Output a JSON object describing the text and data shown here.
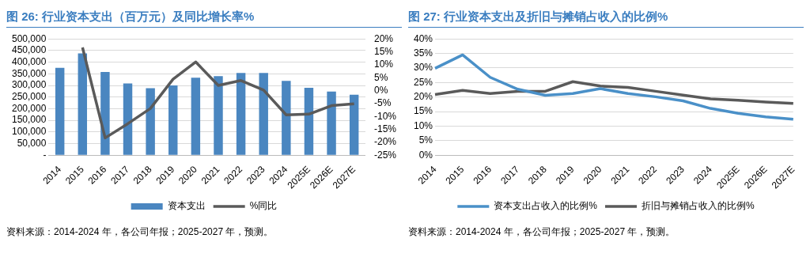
{
  "chart_data": [
    {
      "type": "bar",
      "title": "图 26: 行业资本支出（百万元）及同比增长率%",
      "categories": [
        "2014",
        "2015",
        "2016",
        "2017",
        "2018",
        "2019",
        "2020",
        "2021",
        "2022",
        "2023",
        "2024",
        "2025E",
        "2026E",
        "2027E"
      ],
      "series": [
        {
          "name": "资本支出",
          "type": "bar",
          "color": "#4a86c0",
          "values": [
            376000,
            438000,
            358000,
            309000,
            288000,
            300000,
            333000,
            340000,
            354000,
            354000,
            320000,
            290000,
            274000,
            260000
          ]
        },
        {
          "name": "%同比",
          "type": "line",
          "axis": "y2",
          "color": "#5a5a5a",
          "values": [
            null,
            16.7,
            -18.3,
            -12.8,
            -6.9,
            4.4,
            11.1,
            2.0,
            3.9,
            0.2,
            -9.4,
            -9.1,
            -5.8,
            -5.1
          ]
        }
      ],
      "ylim": [
        0,
        500000
      ],
      "yticks": [
        {
          "value": 0,
          "label": "-"
        },
        {
          "value": 50000,
          "label": "50,000"
        },
        {
          "value": 100000,
          "label": "100,000"
        },
        {
          "value": 150000,
          "label": "150,000"
        },
        {
          "value": 200000,
          "label": "200,000"
        },
        {
          "value": 250000,
          "label": "250,000"
        },
        {
          "value": 300000,
          "label": "300,000"
        },
        {
          "value": 350000,
          "label": "350,000"
        },
        {
          "value": 400000,
          "label": "400,000"
        },
        {
          "value": 450000,
          "label": "450,000"
        },
        {
          "value": 500000,
          "label": "500,000"
        }
      ],
      "y2lim": [
        -25,
        20
      ],
      "y2ticks": [
        {
          "value": -25,
          "label": "-25%"
        },
        {
          "value": -20,
          "label": "-20%"
        },
        {
          "value": -15,
          "label": "-15%"
        },
        {
          "value": -10,
          "label": "-10%"
        },
        {
          "value": -5,
          "label": "-5%"
        },
        {
          "value": 0,
          "label": "0%"
        },
        {
          "value": 5,
          "label": "5%"
        },
        {
          "value": 10,
          "label": "10%"
        },
        {
          "value": 15,
          "label": "15%"
        },
        {
          "value": 20,
          "label": "20%"
        }
      ],
      "grid": "y",
      "legend": "bottom",
      "marker": "none",
      "line_style": "solid",
      "annotations": [
        "资料来源：2014-2024 年，各公司年报；2025-2027 年，预测。"
      ]
    },
    {
      "type": "line",
      "title": "图 27: 行业资本支出及折旧与摊销占收入的比例%",
      "categories": [
        "2014",
        "2015",
        "2016",
        "2017",
        "2018",
        "2019",
        "2020",
        "2021",
        "2022",
        "2023",
        "2024",
        "2025E",
        "2026E",
        "2027E"
      ],
      "series": [
        {
          "name": "资本支出占收入的比例%",
          "color": "#4a90c8",
          "values": [
            29.9,
            34.5,
            26.8,
            22.7,
            20.6,
            21.2,
            22.9,
            21.2,
            20.1,
            18.7,
            16.1,
            14.4,
            13.2,
            12.4
          ]
        },
        {
          "name": "折旧与摊销占收入的比例%",
          "color": "#5a5a5a",
          "values": [
            20.9,
            22.3,
            21.2,
            22.0,
            22.0,
            25.3,
            23.8,
            23.3,
            22.0,
            20.7,
            19.4,
            18.9,
            18.3,
            17.8
          ]
        }
      ],
      "ylim": [
        0,
        40
      ],
      "yticks": [
        {
          "value": 0,
          "label": "0%"
        },
        {
          "value": 5,
          "label": "5%"
        },
        {
          "value": 10,
          "label": "10%"
        },
        {
          "value": 15,
          "label": "15%"
        },
        {
          "value": 20,
          "label": "20%"
        },
        {
          "value": 25,
          "label": "25%"
        },
        {
          "value": 30,
          "label": "30%"
        },
        {
          "value": 35,
          "label": "35%"
        },
        {
          "value": 40,
          "label": "40%"
        }
      ],
      "grid": "y",
      "legend": "bottom",
      "marker": "none",
      "line_style": "solid",
      "annotations": [
        "资料来源：2014-2024 年，各公司年报；2025-2027 年，预测。"
      ]
    }
  ]
}
